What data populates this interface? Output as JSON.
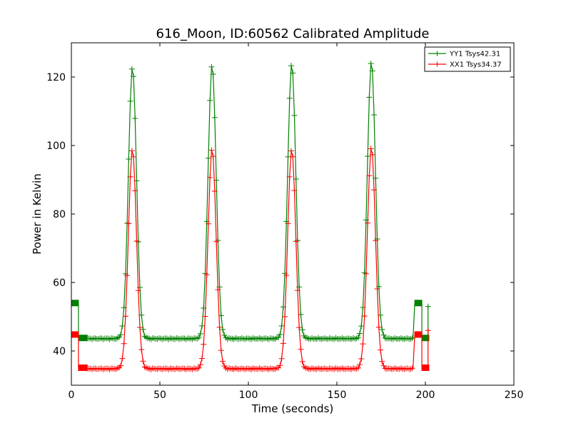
{
  "chart_data": {
    "type": "line",
    "title": "616_Moon, ID:60562 Calibrated Amplitude",
    "xlabel": "Time (seconds)",
    "ylabel": "Power in Kelvin",
    "xlim": [
      0,
      250
    ],
    "ylim": [
      30,
      130
    ],
    "xticks": [
      0,
      50,
      100,
      150,
      200,
      250
    ],
    "yticks": [
      40,
      60,
      80,
      100,
      120
    ],
    "grid": false,
    "legend_position": "top-right",
    "peak_times": [
      34.5,
      79.5,
      124.5,
      169.5
    ],
    "series": [
      {
        "name": "YY1 Tsys42.31",
        "color": "#008000",
        "baseline": 43.6,
        "peaks": [
          123,
          123.5,
          124,
          124.5
        ],
        "cal_on_level": 54,
        "cal_off_level": 43.8,
        "segments": [
          {
            "x": [
              0,
              1,
              2,
              3,
              4
            ],
            "y": [
              54,
              54,
              54,
              54,
              54
            ]
          },
          {
            "x": [
              4
            ],
            "y": [
              43.8
            ]
          },
          {
            "x": [
              4,
              5,
              6,
              7,
              8,
              9
            ],
            "y": [
              44,
              43.8,
              43.8,
              43.9,
              43.8,
              43.8
            ]
          },
          {
            "x": [
              194,
              195,
              196,
              197,
              198
            ],
            "y": [
              54,
              54,
              54,
              54,
              54
            ]
          },
          {
            "x": [
              199,
              200,
              201
            ],
            "y": [
              43.8,
              43.8,
              43.8
            ]
          },
          {
            "x": [
              201,
              202
            ],
            "y": [
              53,
              53
            ]
          }
        ]
      },
      {
        "name": "XX1 Tsys34.37",
        "color": "#ff0000",
        "baseline": 34.8,
        "peaks": [
          99,
          99,
          99,
          99.5
        ],
        "cal_on_level": 44.8,
        "cal_off_level": 35.1,
        "segments": [
          {
            "x": [
              0,
              1,
              2,
              3,
              4
            ],
            "y": [
              44.8,
              44.8,
              44.8,
              44.8,
              44.8
            ]
          },
          {
            "x": [
              4,
              5,
              6,
              7,
              8,
              9
            ],
            "y": [
              35.2,
              35.1,
              35.1,
              35.1,
              35.1,
              35.1
            ]
          },
          {
            "x": [
              194,
              195,
              196,
              197,
              198
            ],
            "y": [
              44.8,
              44.8,
              44.8,
              44.8,
              44.8
            ]
          },
          {
            "x": [
              199,
              200,
              201
            ],
            "y": [
              35.1,
              35.1,
              35.1
            ]
          },
          {
            "x": [
              201,
              202
            ],
            "y": [
              46,
              46
            ]
          }
        ]
      }
    ]
  }
}
